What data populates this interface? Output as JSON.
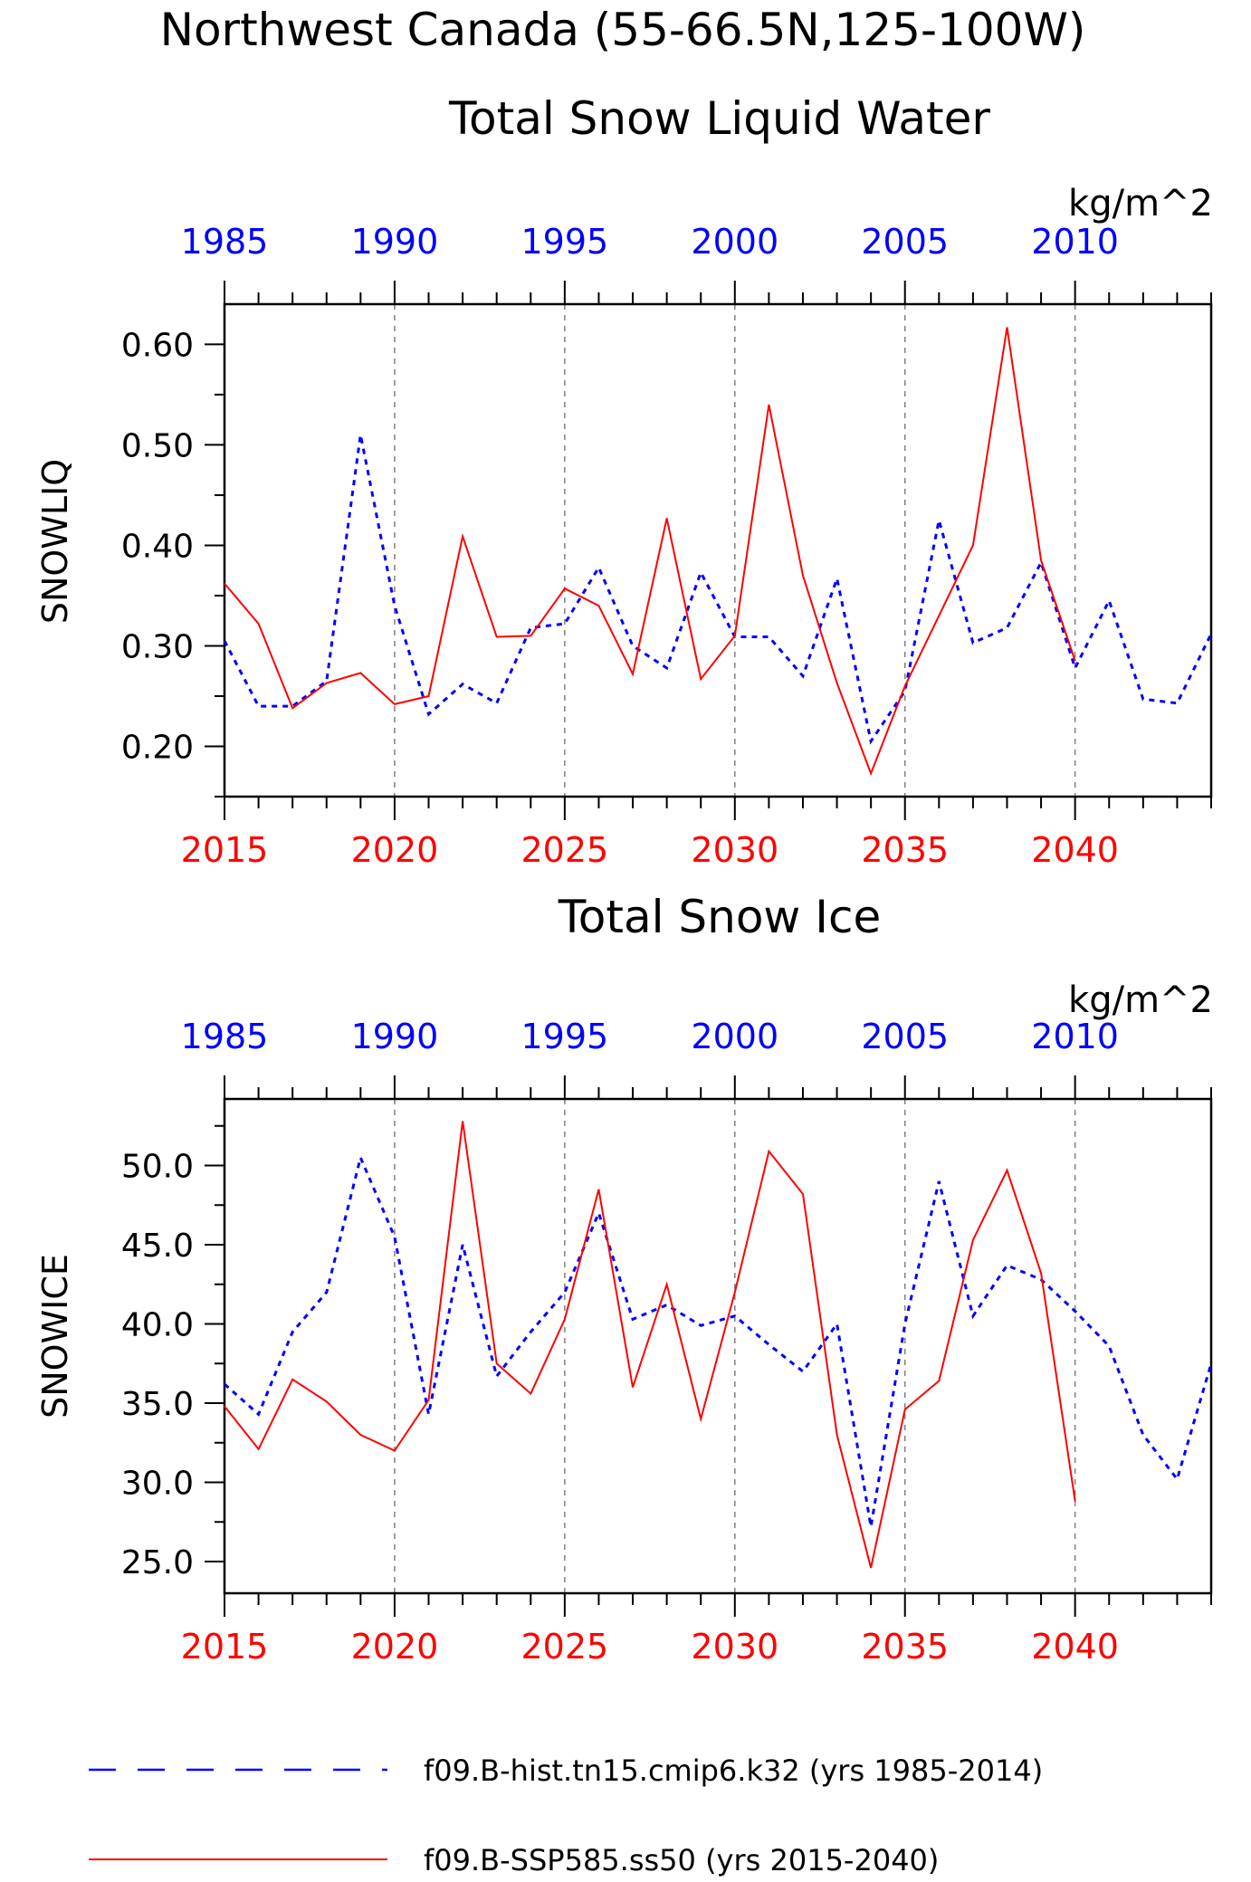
{
  "title_line1": "Northwest Canada (55-66.5N,125-100W)",
  "legend": {
    "hist_label": "f09.B-hist.tn15.cmip6.k32 (yrs 1985-2014)",
    "ssp_label": "f09.B-SSP585.ss50 (yrs 2015-2040)"
  },
  "colors": {
    "hist": "#0000ff",
    "ssp": "#ff0000",
    "axis": "#000000",
    "grid": "#808080"
  },
  "chart_data": [
    {
      "type": "line",
      "title": "Total Snow Liquid Water",
      "units": "kg/m^2",
      "ylabel": "SNOWLIQ",
      "ylim": [
        0.15,
        0.64
      ],
      "yticks": [
        0.2,
        0.3,
        0.4,
        0.5,
        0.6
      ],
      "ytick_labels": [
        "0.20",
        "0.30",
        "0.40",
        "0.50",
        "0.60"
      ],
      "xlim": [
        2015,
        2044
      ],
      "xticks_bottom": [
        2015,
        2020,
        2025,
        2030,
        2035,
        2040
      ],
      "xticks_top_labels": [
        "1985",
        "1990",
        "1995",
        "2000",
        "2005",
        "2010"
      ],
      "grid_x": [
        2020,
        2025,
        2030,
        2035,
        2040
      ],
      "series": [
        {
          "name": "f09.B-hist.tn15.cmip6.k32",
          "style": "dashed",
          "x": [
            1985,
            1986,
            1987,
            1988,
            1989,
            1990,
            1991,
            1992,
            1993,
            1994,
            1995,
            1996,
            1997,
            1998,
            1999,
            2000,
            2001,
            2002,
            2003,
            2004,
            2005,
            2006,
            2007,
            2008,
            2009,
            2010,
            2011,
            2012,
            2013,
            2014
          ],
          "values": [
            0.305,
            0.24,
            0.24,
            0.265,
            0.51,
            0.34,
            0.232,
            0.262,
            0.243,
            0.318,
            0.322,
            0.378,
            0.3,
            0.278,
            0.373,
            0.309,
            0.309,
            0.27,
            0.367,
            0.205,
            0.255,
            0.425,
            0.303,
            0.318,
            0.383,
            0.278,
            0.345,
            0.247,
            0.243,
            0.312
          ]
        },
        {
          "name": "f09.B-SSP585.ss50",
          "style": "solid",
          "x": [
            2015,
            2016,
            2017,
            2018,
            2019,
            2020,
            2021,
            2022,
            2023,
            2024,
            2025,
            2026,
            2027,
            2028,
            2029,
            2030,
            2031,
            2032,
            2033,
            2034,
            2035,
            2036,
            2037,
            2038,
            2039,
            2040
          ],
          "values": [
            0.362,
            0.322,
            0.238,
            0.263,
            0.273,
            0.242,
            0.25,
            0.409,
            0.309,
            0.31,
            0.357,
            0.34,
            0.272,
            0.427,
            0.267,
            0.31,
            0.54,
            0.37,
            0.263,
            0.173,
            0.26,
            0.33,
            0.4,
            0.617,
            0.385,
            0.285
          ]
        }
      ]
    },
    {
      "type": "line",
      "title": "Total Snow Ice",
      "units": "kg/m^2",
      "ylabel": "SNOWICE",
      "ylim": [
        23.0,
        54.2
      ],
      "yticks": [
        25,
        30,
        35,
        40,
        45,
        50
      ],
      "ytick_labels": [
        "25.0",
        "30.0",
        "35.0",
        "40.0",
        "45.0",
        "50.0"
      ],
      "xlim": [
        2015,
        2044
      ],
      "xticks_bottom": [
        2015,
        2020,
        2025,
        2030,
        2035,
        2040
      ],
      "xticks_top_labels": [
        "1985",
        "1990",
        "1995",
        "2000",
        "2005",
        "2010"
      ],
      "grid_x": [
        2020,
        2025,
        2030,
        2035,
        2040
      ],
      "series": [
        {
          "name": "f09.B-hist.tn15.cmip6.k32",
          "style": "dashed",
          "x": [
            1985,
            1986,
            1987,
            1988,
            1989,
            1990,
            1991,
            1992,
            1993,
            1994,
            1995,
            1996,
            1997,
            1998,
            1999,
            2000,
            2001,
            2002,
            2003,
            2004,
            2005,
            2006,
            2007,
            2008,
            2009,
            2010,
            2011,
            2012,
            2013,
            2014
          ],
          "values": [
            36.2,
            34.3,
            39.5,
            42.0,
            50.5,
            45.5,
            34.3,
            45.0,
            36.7,
            39.5,
            42.0,
            47.0,
            40.3,
            41.2,
            39.9,
            40.5,
            38.7,
            37.0,
            40.0,
            27.2,
            40.0,
            49.0,
            40.5,
            43.7,
            42.8,
            40.8,
            38.6,
            33.0,
            30.2,
            37.5
          ]
        },
        {
          "name": "f09.B-SSP585.ss50",
          "style": "solid",
          "x": [
            2015,
            2016,
            2017,
            2018,
            2019,
            2020,
            2021,
            2022,
            2023,
            2024,
            2025,
            2026,
            2027,
            2028,
            2029,
            2030,
            2031,
            2032,
            2033,
            2034,
            2035,
            2036,
            2037,
            2038,
            2039,
            2040
          ],
          "values": [
            34.8,
            32.1,
            36.5,
            35.1,
            33.0,
            32.0,
            35.2,
            52.8,
            37.5,
            35.6,
            40.3,
            48.5,
            36.0,
            42.5,
            34.0,
            42.0,
            50.9,
            48.2,
            33.0,
            24.6,
            34.6,
            36.4,
            45.3,
            49.7,
            43.2,
            28.8
          ]
        }
      ]
    }
  ]
}
